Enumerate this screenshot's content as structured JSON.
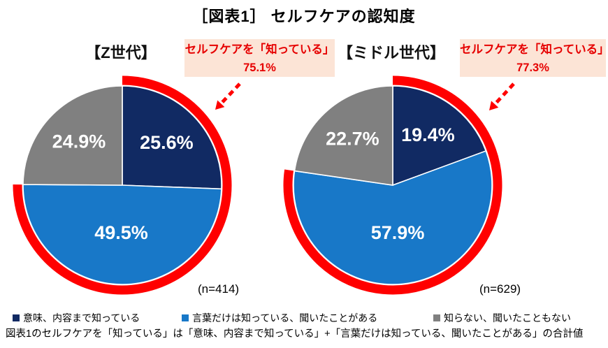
{
  "title": "［図表1］ セルフケアの認知度",
  "colors": {
    "navy": "#112a63",
    "blue": "#1878c8",
    "gray": "#808080",
    "highlight_red": "#ff0000",
    "callout_bg": "#fce4d6",
    "callout_text": "#e60000",
    "slice_label": "#ffffff"
  },
  "legend": {
    "items": [
      {
        "label": "意味、内容まで知っている",
        "color": "#112a63"
      },
      {
        "label": "言葉だけは知っている、聞いたことがある",
        "color": "#1878c8"
      },
      {
        "label": "知らない、聞いたこともない",
        "color": "#808080"
      }
    ]
  },
  "footnote": "図表1のセルフケアを「知っている」は「意味、内容まで知っている」+「言葉だけは知っている、聞いたことがある」の合計値",
  "chart_data": [
    {
      "type": "pie",
      "group_label": "【Z世代】",
      "n_label": "(n=414)",
      "categories": [
        "意味、内容まで知っている",
        "言葉だけは知っている、聞いたことがある",
        "知らない、聞いたこともない"
      ],
      "values": [
        25.6,
        49.5,
        24.9
      ],
      "value_labels": [
        "25.6%",
        "49.5%",
        "24.9%"
      ],
      "slice_colors": [
        "#112a63",
        "#1878c8",
        "#808080"
      ],
      "start_angle_deg": 0,
      "direction": "clockwise",
      "callout": {
        "line1": "セルフケアを「知っている」",
        "line2": "75.1%",
        "arc_value": 75.1
      }
    },
    {
      "type": "pie",
      "group_label": "【ミドル世代】",
      "n_label": "(n=629)",
      "categories": [
        "意味、内容まで知っている",
        "言葉だけは知っている、聞いたことがある",
        "知らない、聞いたこともない"
      ],
      "values": [
        19.4,
        57.9,
        22.7
      ],
      "value_labels": [
        "19.4%",
        "57.9%",
        "22.7%"
      ],
      "slice_colors": [
        "#112a63",
        "#1878c8",
        "#808080"
      ],
      "start_angle_deg": 0,
      "direction": "clockwise",
      "callout": {
        "line1": "セルフケアを「知っている」",
        "line2": "77.3%",
        "arc_value": 77.3
      }
    }
  ]
}
